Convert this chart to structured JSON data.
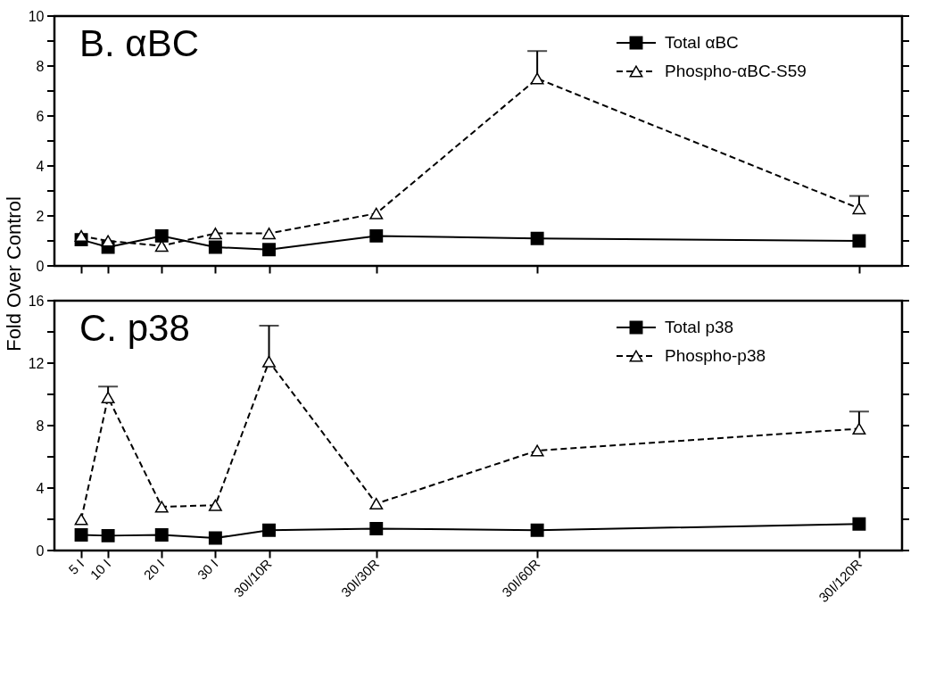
{
  "chart_data": [
    {
      "type": "line",
      "title": "B. αBC",
      "ylabel": "Fold Over Control",
      "x": [
        5,
        10,
        20,
        30,
        40,
        60,
        90,
        150
      ],
      "xlim": [
        0,
        158
      ],
      "xticks": [
        {
          "value": 5,
          "label": null
        },
        {
          "value": 10,
          "label": null
        },
        {
          "value": 20,
          "label": null
        },
        {
          "value": 30,
          "label": null
        },
        {
          "value": 40,
          "label": null
        },
        {
          "value": 60,
          "label": null
        },
        {
          "value": 90,
          "label": null
        },
        {
          "value": 150,
          "label": null
        }
      ],
      "ylim": [
        0,
        10
      ],
      "yticks": [
        0,
        {
          "value": 1,
          "label": null
        },
        2,
        {
          "value": 3,
          "label": null
        },
        4,
        {
          "value": 5,
          "label": null
        },
        6,
        {
          "value": 7,
          "label": null
        },
        8,
        {
          "value": 9,
          "label": null
        },
        10
      ],
      "tick_labels": "y",
      "grid": false,
      "legend": "top right",
      "series": [
        {
          "name": "Total αBC",
          "color": "#000000",
          "marker": "square",
          "line_style": "solid",
          "values": [
            1.05,
            0.75,
            1.2,
            0.75,
            0.65,
            1.2,
            1.1,
            1.0
          ]
        },
        {
          "name": "Phospho-αBC-S59",
          "color": "#000000",
          "marker": "triangle",
          "line_style": "dashed",
          "values": [
            1.2,
            1.0,
            0.8,
            1.3,
            1.3,
            2.1,
            7.5,
            2.3
          ],
          "errors": [
            null,
            null,
            null,
            null,
            null,
            null,
            [
              7.5,
              8.6
            ],
            [
              2.3,
              2.8
            ]
          ]
        }
      ]
    },
    {
      "type": "line",
      "title": "C. p38",
      "x": [
        5,
        10,
        20,
        30,
        40,
        60,
        90,
        150
      ],
      "xlim": [
        0,
        158
      ],
      "xticks": [
        {
          "value": 5,
          "label": "5 I"
        },
        {
          "value": 10,
          "label": "10 I"
        },
        {
          "value": 20,
          "label": "20 I"
        },
        {
          "value": 30,
          "label": "30 I"
        },
        {
          "value": 40,
          "label": "30I/10R"
        },
        {
          "value": 60,
          "label": "30I/30R"
        },
        {
          "value": 90,
          "label": "30I/60R"
        },
        {
          "value": 150,
          "label": "30I/120R"
        }
      ],
      "ylim": [
        0,
        16
      ],
      "yticks": [
        0,
        {
          "value": 2,
          "label": null
        },
        4,
        {
          "value": 6,
          "label": null
        },
        8,
        {
          "value": 10,
          "label": null
        },
        12,
        {
          "value": 14,
          "label": null
        },
        16
      ],
      "grid": false,
      "legend": "top right",
      "series": [
        {
          "name": "Total p38",
          "color": "#000000",
          "marker": "square",
          "line_style": "solid",
          "values": [
            1.0,
            0.95,
            1.0,
            0.8,
            1.3,
            1.4,
            1.3,
            1.7
          ]
        },
        {
          "name": "Phospho-p38",
          "color": "#000000",
          "marker": "triangle",
          "line_style": "dashed",
          "values": [
            2.0,
            9.8,
            2.8,
            2.9,
            12.1,
            3.0,
            6.4,
            7.8
          ],
          "errors": [
            null,
            [
              9.8,
              10.5
            ],
            null,
            null,
            [
              12.1,
              14.4
            ],
            null,
            null,
            [
              7.8,
              8.9
            ]
          ]
        }
      ]
    }
  ]
}
